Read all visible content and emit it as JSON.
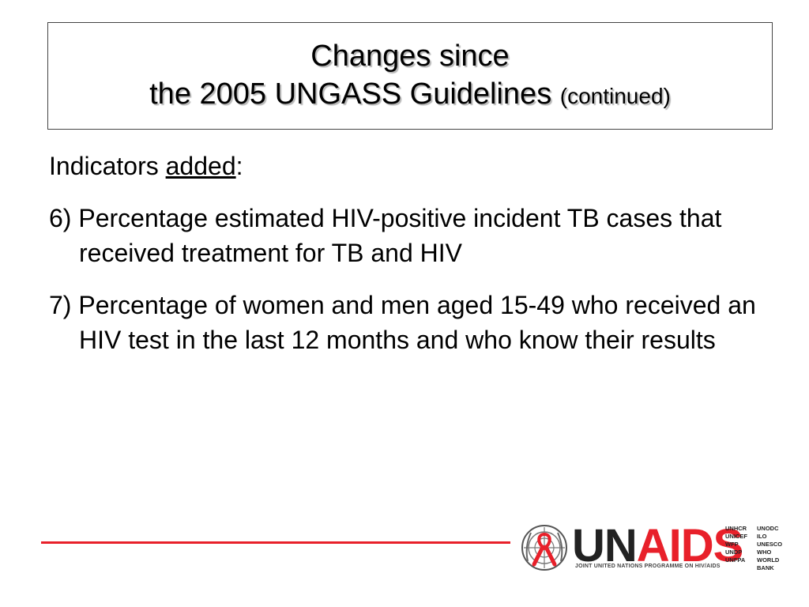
{
  "title": {
    "line1": "Changes since",
    "line2": "the 2005 UNGASS Guidelines",
    "line2_suffix": "(continued)"
  },
  "body": {
    "intro_prefix": "Indicators ",
    "intro_emph": "added",
    "intro_suffix": ":",
    "items": [
      "6) Percentage estimated HIV-positive incident TB cases that received treatment for TB and HIV",
      "7) Percentage of women and men aged 15-49 who received an HIV test in the last 12 months and who know their results"
    ]
  },
  "logo": {
    "word_un": "UN",
    "word_aids": "AIDS",
    "subtitle": "JOINT UNITED NATIONS PROGRAMME ON HIV/AIDS",
    "cosponsors_left": [
      "UNHCR",
      "UNICEF",
      "WFP",
      "UNDP",
      "UNFPA"
    ],
    "cosponsors_right": [
      "UNODC",
      "ILO",
      "UNESCO",
      "WHO",
      "WORLD BANK"
    ]
  },
  "colors": {
    "accent_red": "#e8202a",
    "text": "#000000"
  },
  "icons": [
    "un-emblem-icon",
    "red-ribbon-icon"
  ]
}
